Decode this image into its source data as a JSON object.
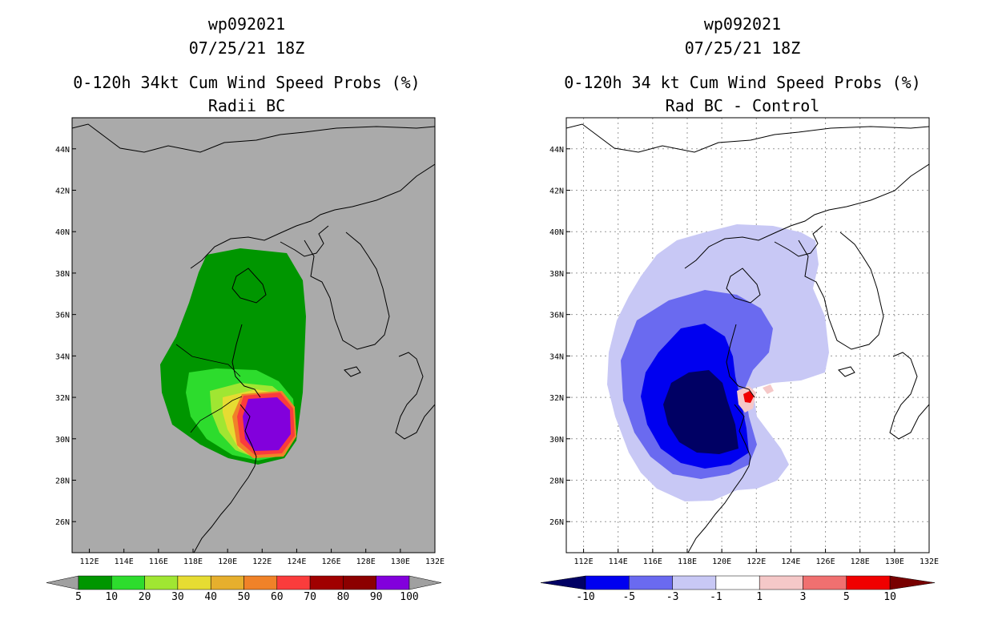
{
  "chart_data": [
    {
      "type": "heatmap",
      "panel": "left",
      "title_lines": [
        "wp092021",
        "07/25/21 18Z",
        "0-120h 34kt Cum Wind Speed Probs (%)",
        "Radii BC"
      ],
      "x_axis": {
        "ticks": [
          "112E",
          "114E",
          "116E",
          "118E",
          "120E",
          "122E",
          "124E",
          "126E",
          "128E",
          "130E",
          "132E"
        ],
        "range": [
          111,
          132
        ]
      },
      "y_axis": {
        "ticks": [
          "26N",
          "28N",
          "30N",
          "32N",
          "34N",
          "36N",
          "38N",
          "40N",
          "42N",
          "44N"
        ],
        "range": [
          24.5,
          45.5
        ]
      },
      "grid": false,
      "background": "#aaaaaa",
      "colorbar": {
        "levels": [
          "5",
          "10",
          "20",
          "30",
          "40",
          "50",
          "60",
          "70",
          "80",
          "90",
          "100"
        ],
        "colors": [
          "#a0a0a0",
          "#009600",
          "#2ddc2d",
          "#a0e632",
          "#e6dc32",
          "#e6af2d",
          "#f08228",
          "#fa3c3c",
          "#a00000",
          "#8c0000",
          "#8200dc"
        ]
      }
    },
    {
      "type": "heatmap",
      "panel": "right",
      "title_lines": [
        "wp092021",
        "07/25/21 18Z",
        "0-120h 34 kt Cum Wind Speed Probs (%)",
        "Rad BC - Control"
      ],
      "x_axis": {
        "ticks": [
          "112E",
          "114E",
          "116E",
          "118E",
          "120E",
          "122E",
          "124E",
          "126E",
          "128E",
          "130E",
          "132E"
        ],
        "range": [
          111,
          132
        ]
      },
      "y_axis": {
        "ticks": [
          "26N",
          "28N",
          "30N",
          "32N",
          "34N",
          "36N",
          "38N",
          "40N",
          "42N",
          "44N"
        ],
        "range": [
          24.5,
          45.5
        ]
      },
      "grid": true,
      "background": "#ffffff",
      "colorbar": {
        "levels": [
          "-10",
          "-5",
          "-3",
          "-1",
          "1",
          "3",
          "5",
          "10"
        ],
        "colors": [
          "#000064",
          "#0000f0",
          "#6a6af0",
          "#c8c8f5",
          "#ffffff",
          "#f5c8c8",
          "#f07070",
          "#f00000",
          "#780000"
        ]
      }
    }
  ]
}
